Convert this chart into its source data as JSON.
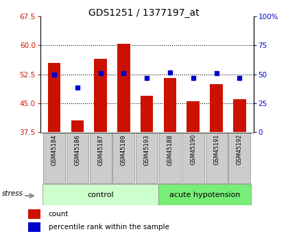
{
  "title": "GDS1251 / 1377197_at",
  "samples": [
    "GSM45184",
    "GSM45186",
    "GSM45187",
    "GSM45189",
    "GSM45193",
    "GSM45188",
    "GSM45190",
    "GSM45191",
    "GSM45192"
  ],
  "red_values": [
    55.5,
    40.5,
    56.5,
    60.5,
    47.0,
    51.5,
    45.5,
    50.0,
    46.0
  ],
  "blue_values": [
    52.5,
    49.0,
    52.8,
    52.8,
    51.5,
    53.0,
    51.5,
    52.8,
    51.5
  ],
  "ymin": 37.5,
  "ymax": 67.5,
  "yticks": [
    37.5,
    45.0,
    52.5,
    60.0,
    67.5
  ],
  "y2min": 0,
  "y2max": 100,
  "y2ticks": [
    0,
    25,
    50,
    75,
    100
  ],
  "y2ticklabels": [
    "0",
    "25",
    "50",
    "75",
    "100%"
  ],
  "control_samples": 5,
  "acute_samples": 4,
  "control_label": "control",
  "acute_label": "acute hypotension",
  "stress_label": "stress",
  "legend_count": "count",
  "legend_percentile": "percentile rank within the sample",
  "bar_color": "#cc1100",
  "marker_color": "#0000cc",
  "control_bg": "#ccffcc",
  "acute_bg": "#77ee77",
  "label_bg": "#cccccc",
  "bar_bottom": 37.5,
  "grid_yticks": [
    45.0,
    52.5,
    60.0
  ]
}
